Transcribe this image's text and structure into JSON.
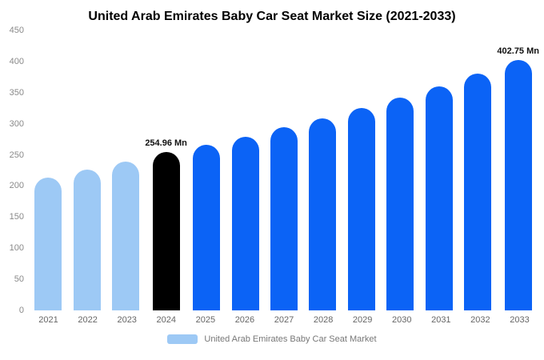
{
  "title": "United Arab Emirates Baby Car Seat Market Size (2021-2033)",
  "legend": {
    "label": "United Arab Emirates Baby Car Seat Market",
    "swatch_color": "#9DC9F5"
  },
  "chart_data": {
    "type": "bar",
    "title": "United Arab Emirates Baby Car Seat Market Size (2021-2033)",
    "categories": [
      "2021",
      "2022",
      "2023",
      "2024",
      "2025",
      "2026",
      "2027",
      "2028",
      "2029",
      "2030",
      "2031",
      "2032",
      "2033"
    ],
    "values": [
      213,
      226,
      239,
      254.96,
      266,
      279,
      294,
      309,
      325,
      342,
      360,
      380,
      402.75
    ],
    "unit": "Mn",
    "ylim": [
      0,
      450
    ],
    "yticks": [
      0,
      50,
      100,
      150,
      200,
      250,
      300,
      350,
      400,
      450
    ],
    "grid": false,
    "legend_position": "bottom",
    "bar_colors": [
      "#9DC9F5",
      "#9DC9F5",
      "#9DC9F5",
      "#000000",
      "#0B63F6",
      "#0B63F6",
      "#0B63F6",
      "#0B63F6",
      "#0B63F6",
      "#0B63F6",
      "#0B63F6",
      "#0B63F6",
      "#0B63F6"
    ],
    "annotations": [
      {
        "index": 3,
        "label": "254.96 Mn"
      },
      {
        "index": 12,
        "label": "402.75 Mn"
      }
    ]
  }
}
